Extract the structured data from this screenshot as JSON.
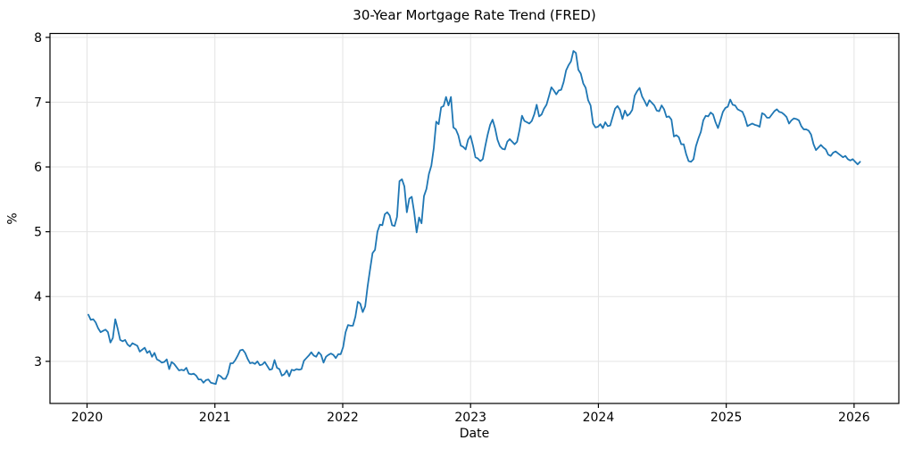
{
  "chart_data": {
    "type": "line",
    "title": "30-Year Mortgage Rate Trend (FRED)",
    "xlabel": "Date",
    "ylabel": "%",
    "x_ticks": [
      2020,
      2021,
      2022,
      2023,
      2024,
      2025,
      2026
    ],
    "y_ticks": [
      3,
      4,
      5,
      6,
      7,
      8
    ],
    "xlim": [
      2019.71,
      2026.35
    ],
    "ylim": [
      2.35,
      8.06
    ],
    "grid": true,
    "legend": "none",
    "line_color": "#1f77b4",
    "grid_color": "#e4e4e4",
    "spine_color": "#000000",
    "series": [
      {
        "x_start": 2020.01,
        "x_step": 0.019165,
        "values": [
          3.72,
          3.64,
          3.65,
          3.6,
          3.51,
          3.45,
          3.47,
          3.49,
          3.45,
          3.29,
          3.36,
          3.65,
          3.5,
          3.33,
          3.31,
          3.33,
          3.26,
          3.23,
          3.28,
          3.26,
          3.24,
          3.15,
          3.18,
          3.21,
          3.13,
          3.16,
          3.07,
          3.13,
          3.03,
          3.01,
          2.98,
          2.99,
          3.03,
          2.88,
          2.99,
          2.96,
          2.91,
          2.86,
          2.87,
          2.86,
          2.9,
          2.81,
          2.8,
          2.81,
          2.78,
          2.72,
          2.72,
          2.67,
          2.71,
          2.72,
          2.67,
          2.66,
          2.65,
          2.79,
          2.77,
          2.73,
          2.73,
          2.81,
          2.97,
          2.97,
          3.02,
          3.09,
          3.17,
          3.18,
          3.13,
          3.04,
          2.97,
          2.98,
          2.96,
          3.0,
          2.94,
          2.95,
          2.99,
          2.93,
          2.87,
          2.88,
          3.02,
          2.9,
          2.88,
          2.78,
          2.8,
          2.86,
          2.77,
          2.87,
          2.86,
          2.88,
          2.87,
          2.88,
          3.01,
          3.05,
          3.09,
          3.14,
          3.09,
          3.07,
          3.14,
          3.1,
          2.98,
          3.07,
          3.1,
          3.12,
          3.1,
          3.05,
          3.11,
          3.11,
          3.22,
          3.45,
          3.56,
          3.55,
          3.55,
          3.69,
          3.92,
          3.89,
          3.76,
          3.85,
          4.16,
          4.42,
          4.67,
          4.72,
          5.0,
          5.11,
          5.1,
          5.27,
          5.3,
          5.25,
          5.1,
          5.09,
          5.23,
          5.78,
          5.81,
          5.7,
          5.3,
          5.51,
          5.54,
          5.3,
          4.99,
          5.22,
          5.13,
          5.55,
          5.66,
          5.89,
          6.02,
          6.29,
          6.7,
          6.66,
          6.92,
          6.94,
          7.08,
          6.95,
          7.08,
          6.61,
          6.58,
          6.49,
          6.33,
          6.31,
          6.27,
          6.42,
          6.48,
          6.33,
          6.15,
          6.13,
          6.09,
          6.12,
          6.32,
          6.5,
          6.65,
          6.73,
          6.6,
          6.42,
          6.32,
          6.28,
          6.27,
          6.39,
          6.43,
          6.39,
          6.35,
          6.39,
          6.57,
          6.79,
          6.71,
          6.69,
          6.67,
          6.71,
          6.81,
          6.96,
          6.78,
          6.81,
          6.9,
          6.96,
          7.09,
          7.23,
          7.18,
          7.12,
          7.18,
          7.19,
          7.31,
          7.49,
          7.57,
          7.63,
          7.79,
          7.76,
          7.5,
          7.44,
          7.29,
          7.22,
          7.03,
          6.95,
          6.67,
          6.61,
          6.62,
          6.66,
          6.6,
          6.69,
          6.63,
          6.64,
          6.77,
          6.9,
          6.94,
          6.88,
          6.74,
          6.87,
          6.79,
          6.82,
          6.88,
          7.1,
          7.17,
          7.22,
          7.09,
          7.02,
          6.94,
          7.03,
          6.99,
          6.95,
          6.87,
          6.86,
          6.95,
          6.89,
          6.77,
          6.78,
          6.73,
          6.47,
          6.49,
          6.46,
          6.35,
          6.35,
          6.2,
          6.09,
          6.08,
          6.12,
          6.32,
          6.44,
          6.54,
          6.72,
          6.79,
          6.78,
          6.84,
          6.81,
          6.69,
          6.6,
          6.72,
          6.85,
          6.91,
          6.93,
          7.04,
          6.96,
          6.95,
          6.89,
          6.87,
          6.85,
          6.76,
          6.63,
          6.65,
          6.67,
          6.65,
          6.64,
          6.62,
          6.83,
          6.81,
          6.76,
          6.76,
          6.81,
          6.86,
          6.89,
          6.85,
          6.84,
          6.81,
          6.77,
          6.67,
          6.72,
          6.75,
          6.74,
          6.72,
          6.63,
          6.58,
          6.58,
          6.56,
          6.5,
          6.35,
          6.26,
          6.3,
          6.34,
          6.3,
          6.27,
          6.19,
          6.17,
          6.22,
          6.24,
          6.21,
          6.18,
          6.15,
          6.17,
          6.12,
          6.1,
          6.12,
          6.08,
          6.04,
          6.08
        ]
      }
    ]
  }
}
